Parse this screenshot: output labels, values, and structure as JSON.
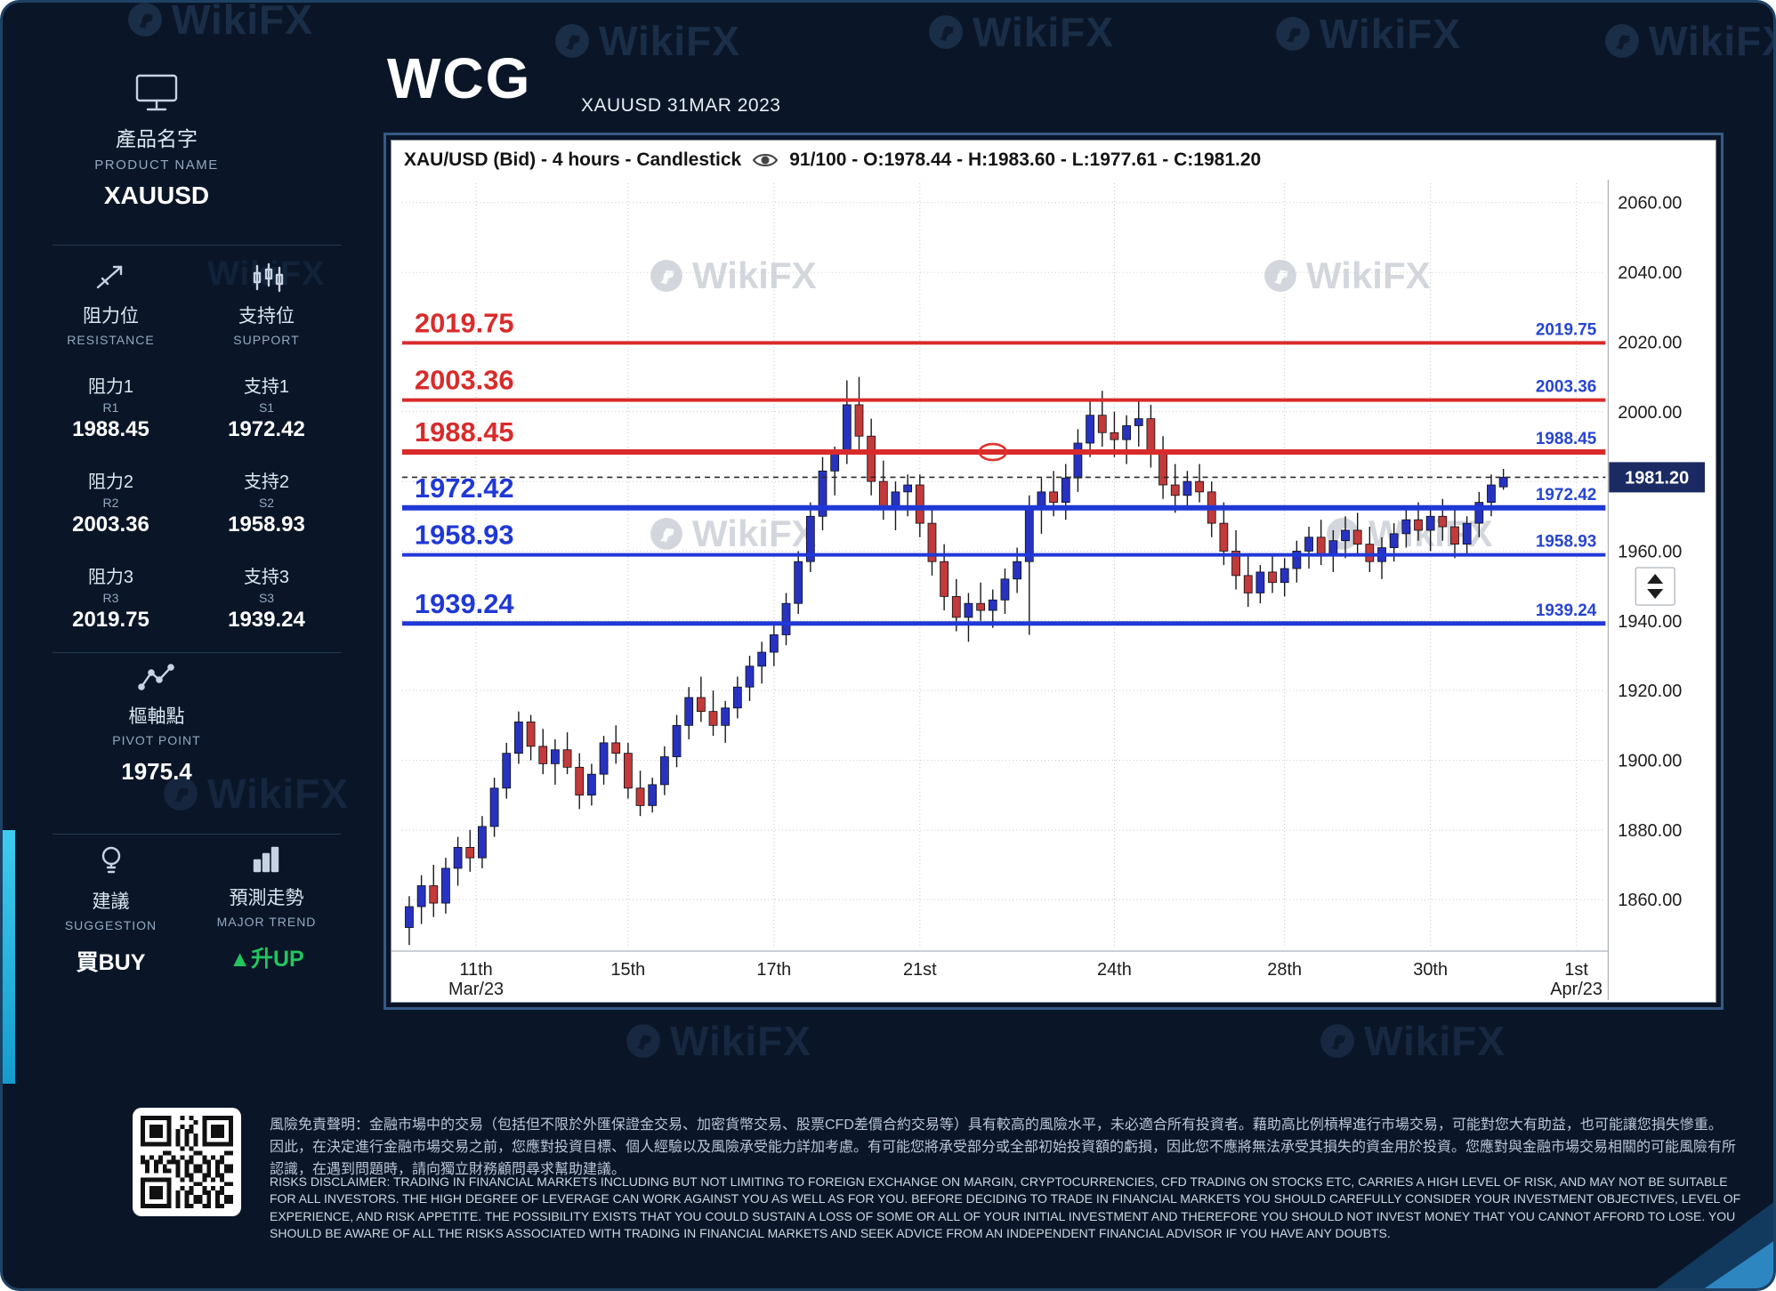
{
  "header": {
    "brand": "WCG",
    "subtitle": "XAUUSD 31MAR 2023"
  },
  "watermark": {
    "text": "WikiFX"
  },
  "colors": {
    "accent_green": "#22c55e",
    "resistance_red": "#d92b2b",
    "support_blue": "#2038d5",
    "badge_navy": "#1b2a63"
  },
  "sidebar": {
    "product_label_zh": "產品名字",
    "product_label_en": "PRODUCT NAME",
    "product_name": "XAUUSD",
    "resistance": {
      "label_zh": "阻力位",
      "label_en": "RESISTANCE",
      "levels": [
        {
          "zh": "阻力1",
          "code": "R1",
          "value": "1988.45"
        },
        {
          "zh": "阻力2",
          "code": "R2",
          "value": "2003.36"
        },
        {
          "zh": "阻力3",
          "code": "R3",
          "value": "2019.75"
        }
      ]
    },
    "support": {
      "label_zh": "支持位",
      "label_en": "SUPPORT",
      "levels": [
        {
          "zh": "支持1",
          "code": "S1",
          "value": "1972.42"
        },
        {
          "zh": "支持2",
          "code": "S2",
          "value": "1958.93"
        },
        {
          "zh": "支持3",
          "code": "S3",
          "value": "1939.24"
        }
      ]
    },
    "pivot": {
      "label_zh": "樞軸點",
      "label_en": "PIVOT POINT",
      "value": "1975.4"
    },
    "suggestion": {
      "label_zh": "建議",
      "label_en": "SUGGESTION",
      "value": "買BUY"
    },
    "trend": {
      "label_zh": "預測走勢",
      "label_en": "MAJOR TREND",
      "arrow": "▲",
      "value": "升UP"
    }
  },
  "chart_data": {
    "type": "candlestick",
    "title": "XAU/USD (Bid) - 4 hours - Candlestick",
    "ohlc_text": "91/100 - O:1978.44 - H:1983.60 - L:1977.61 - C:1981.20",
    "current_price": 1981.2,
    "ylim": [
      1846,
      2063
    ],
    "y_ticks": [
      2060,
      2040,
      2020,
      2000,
      1980,
      1960,
      1940,
      1920,
      1900,
      1880,
      1860
    ],
    "x_step": 13.7,
    "x_ticks": [
      {
        "i": 5.5,
        "label": "11th",
        "sub": "Mar/23"
      },
      {
        "i": 18,
        "label": "15th"
      },
      {
        "i": 30,
        "label": "17th"
      },
      {
        "i": 42,
        "label": "21st"
      },
      {
        "i": 58,
        "label": "24th"
      },
      {
        "i": 72,
        "label": "28th"
      },
      {
        "i": 84,
        "label": "30th"
      },
      {
        "i": 96,
        "label": "1st",
        "sub": "Apr/23"
      }
    ],
    "resistance_lines": [
      {
        "value": 2019.75,
        "width": 4
      },
      {
        "value": 2003.36,
        "width": 4
      },
      {
        "value": 1988.45,
        "width": 6
      }
    ],
    "support_lines": [
      {
        "value": 1972.42,
        "width": 6
      },
      {
        "value": 1958.93,
        "width": 4
      },
      {
        "value": 1939.24,
        "width": 5
      }
    ],
    "annotation": {
      "index": 48,
      "price": 1988.45
    },
    "resistance_color": "#d92b2b",
    "support_color": "#2038d5",
    "up_color": "#2733c0",
    "down_color": "#c23a3a",
    "badge_color": "#1b2a63",
    "legend_position": "none",
    "grid": true,
    "candles": [
      [
        1852,
        1861,
        1847,
        1858
      ],
      [
        1858,
        1867,
        1853,
        1864
      ],
      [
        1864,
        1870,
        1855,
        1859
      ],
      [
        1859,
        1872,
        1856,
        1869
      ],
      [
        1869,
        1878,
        1864,
        1875
      ],
      [
        1875,
        1880,
        1868,
        1872
      ],
      [
        1872,
        1884,
        1869,
        1881
      ],
      [
        1881,
        1895,
        1878,
        1892
      ],
      [
        1892,
        1905,
        1889,
        1902
      ],
      [
        1902,
        1914,
        1899,
        1911
      ],
      [
        1911,
        1913,
        1900,
        1904
      ],
      [
        1904,
        1909,
        1896,
        1899
      ],
      [
        1899,
        1906,
        1893,
        1903
      ],
      [
        1903,
        1908,
        1896,
        1898
      ],
      [
        1898,
        1902,
        1886,
        1890
      ],
      [
        1890,
        1899,
        1887,
        1896
      ],
      [
        1896,
        1907,
        1893,
        1905
      ],
      [
        1905,
        1910,
        1899,
        1902
      ],
      [
        1902,
        1905,
        1889,
        1892
      ],
      [
        1892,
        1897,
        1884,
        1887
      ],
      [
        1887,
        1895,
        1885,
        1893
      ],
      [
        1893,
        1904,
        1890,
        1901
      ],
      [
        1901,
        1913,
        1898,
        1910
      ],
      [
        1910,
        1921,
        1906,
        1918
      ],
      [
        1918,
        1924,
        1911,
        1914
      ],
      [
        1914,
        1920,
        1907,
        1910
      ],
      [
        1910,
        1917,
        1905,
        1915
      ],
      [
        1915,
        1924,
        1912,
        1921
      ],
      [
        1921,
        1930,
        1917,
        1927
      ],
      [
        1927,
        1934,
        1922,
        1931
      ],
      [
        1931,
        1939,
        1927,
        1936
      ],
      [
        1936,
        1948,
        1933,
        1945
      ],
      [
        1945,
        1960,
        1942,
        1957
      ],
      [
        1957,
        1974,
        1954,
        1970
      ],
      [
        1970,
        1987,
        1966,
        1983
      ],
      [
        1983,
        1990,
        1976,
        1988
      ],
      [
        1988,
        2009,
        1985,
        2002
      ],
      [
        2002,
        2010,
        1989,
        1993
      ],
      [
        1993,
        1998,
        1976,
        1980
      ],
      [
        1980,
        1986,
        1969,
        1973
      ],
      [
        1973,
        1980,
        1966,
        1977
      ],
      [
        1977,
        1982,
        1970,
        1979
      ],
      [
        1979,
        1982,
        1964,
        1968
      ],
      [
        1968,
        1973,
        1953,
        1957
      ],
      [
        1957,
        1962,
        1943,
        1947
      ],
      [
        1947,
        1952,
        1937,
        1941
      ],
      [
        1941,
        1948,
        1934,
        1945
      ],
      [
        1945,
        1951,
        1940,
        1943
      ],
      [
        1943,
        1949,
        1938,
        1946
      ],
      [
        1946,
        1955,
        1942,
        1952
      ],
      [
        1952,
        1961,
        1948,
        1957
      ],
      [
        1957,
        1976,
        1936,
        1972
      ],
      [
        1972,
        1981,
        1965,
        1977
      ],
      [
        1977,
        1983,
        1970,
        1974
      ],
      [
        1974,
        1985,
        1969,
        1981
      ],
      [
        1981,
        1995,
        1977,
        1991
      ],
      [
        1991,
        2003,
        1987,
        1999
      ],
      [
        1999,
        2006,
        1990,
        1994
      ],
      [
        1994,
        2000,
        1987,
        1992
      ],
      [
        1992,
        1999,
        1985,
        1996
      ],
      [
        1996,
        2003,
        1990,
        1998
      ],
      [
        1998,
        2002,
        1984,
        1988
      ],
      [
        1988,
        1993,
        1975,
        1979
      ],
      [
        1979,
        1985,
        1971,
        1976
      ],
      [
        1976,
        1983,
        1972,
        1980
      ],
      [
        1980,
        1985,
        1974,
        1977
      ],
      [
        1977,
        1980,
        1964,
        1968
      ],
      [
        1968,
        1974,
        1956,
        1960
      ],
      [
        1960,
        1966,
        1949,
        1953
      ],
      [
        1953,
        1959,
        1944,
        1948
      ],
      [
        1948,
        1956,
        1945,
        1954
      ],
      [
        1954,
        1959,
        1948,
        1951
      ],
      [
        1951,
        1958,
        1947,
        1955
      ],
      [
        1955,
        1963,
        1951,
        1960
      ],
      [
        1960,
        1967,
        1955,
        1964
      ],
      [
        1964,
        1969,
        1956,
        1959
      ],
      [
        1959,
        1966,
        1954,
        1963
      ],
      [
        1963,
        1970,
        1958,
        1966
      ],
      [
        1966,
        1971,
        1959,
        1962
      ],
      [
        1962,
        1967,
        1954,
        1957
      ],
      [
        1957,
        1964,
        1952,
        1961
      ],
      [
        1961,
        1968,
        1957,
        1965
      ],
      [
        1965,
        1972,
        1961,
        1969
      ],
      [
        1969,
        1974,
        1963,
        1966
      ],
      [
        1966,
        1973,
        1960,
        1970
      ],
      [
        1970,
        1975,
        1963,
        1967
      ],
      [
        1967,
        1972,
        1958,
        1962
      ],
      [
        1962,
        1970,
        1959,
        1968
      ],
      [
        1968,
        1977,
        1964,
        1974
      ],
      [
        1974,
        1982,
        1970,
        1979
      ],
      [
        1978.44,
        1983.6,
        1977.61,
        1981.2
      ]
    ]
  },
  "footer": {
    "disclaimer_zh": "風險免責聲明：金融市場中的交易（包括但不限於外匯保證金交易、加密貨幣交易、股票CFD差價合約交易等）具有較高的風險水平，未必適合所有投資者。藉助高比例槓桿進行市場交易，可能對您大有助益，也可能讓您損失慘重。因此，在決定進行金融市場交易之前，您應對投資目標、個人經驗以及風險承受能力詳加考慮。有可能您將承受部分或全部初始投資額的虧損，因此您不應將無法承受其損失的資金用於投資。您應對與金融市場交易相關的可能風險有所認識，在遇到問題時，請向獨立財務顧問尋求幫助建議。",
    "disclaimer_en": "RISKS DISCLAIMER: TRADING IN FINANCIAL MARKETS INCLUDING BUT NOT LIMITING TO FOREIGN EXCHANGE ON MARGIN, CRYPTOCURRENCIES, CFD TRADING ON STOCKS ETC, CARRIES A HIGH LEVEL OF RISK, AND MAY NOT BE SUITABLE FOR ALL INVESTORS. THE HIGH DEGREE OF LEVERAGE CAN WORK AGAINST YOU AS WELL AS FOR YOU. BEFORE DECIDING TO TRADE IN FINANCIAL MARKETS YOU SHOULD CAREFULLY CONSIDER YOUR INVESTMENT OBJECTIVES, LEVEL OF EXPERIENCE, AND RISK APPETITE. THE POSSIBILITY EXISTS THAT YOU COULD SUSTAIN A LOSS OF SOME OR ALL OF YOUR INITIAL INVESTMENT AND THEREFORE YOU SHOULD NOT INVEST MONEY THAT YOU CANNOT AFFORD TO LOSE. YOU SHOULD BE AWARE OF ALL THE RISKS ASSOCIATED WITH TRADING IN FINANCIAL MARKETS AND SEEK ADVICE FROM AN INDEPENDENT FINANCIAL ADVISOR IF YOU HAVE ANY DOUBTS."
  }
}
